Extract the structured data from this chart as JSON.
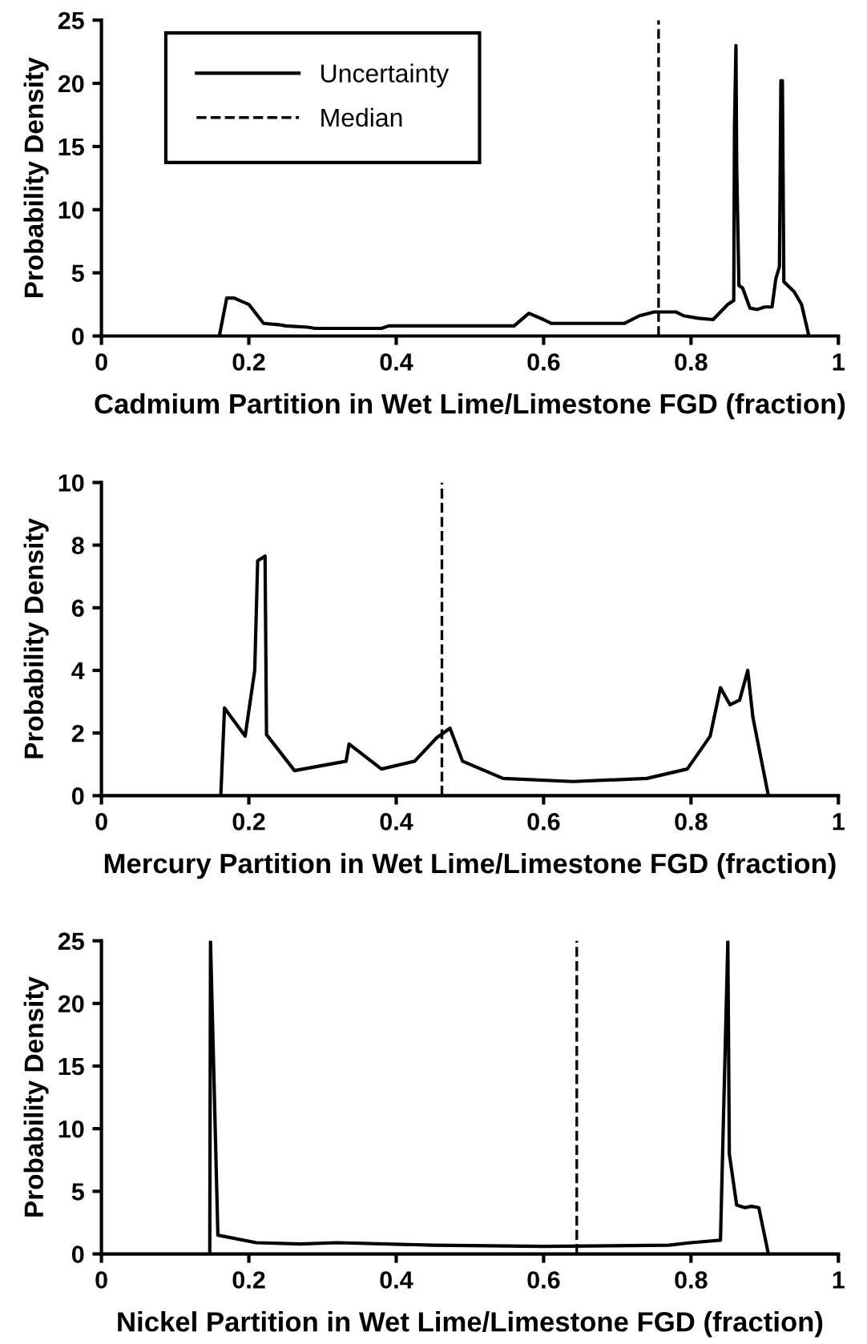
{
  "chart_data": [
    {
      "type": "line",
      "xlabel": "Cadmium Partition in Wet Lime/Limestone FGD (fraction)",
      "ylabel": "Probability Density",
      "xlim": [
        0,
        1
      ],
      "ylim": [
        0,
        25
      ],
      "xticks": [
        0,
        0.2,
        0.4,
        0.6,
        0.8,
        1
      ],
      "yticks": [
        0,
        5,
        10,
        15,
        20,
        25
      ],
      "grid": false,
      "legend": "top left",
      "line_style": "solid",
      "series": [
        {
          "name": "Uncertainty",
          "color": "#000000",
          "x": [
            0.16,
            0.17,
            0.18,
            0.2,
            0.22,
            0.24,
            0.25,
            0.28,
            0.29,
            0.38,
            0.39,
            0.56,
            0.58,
            0.6,
            0.61,
            0.71,
            0.73,
            0.75,
            0.78,
            0.79,
            0.81,
            0.83,
            0.85,
            0.858,
            0.859,
            0.861,
            0.862,
            0.865,
            0.87,
            0.88,
            0.89,
            0.9,
            0.91,
            0.915,
            0.92,
            0.922,
            0.924,
            0.926,
            0.94,
            0.95,
            0.96
          ],
          "values": [
            0,
            3.0,
            3.0,
            2.5,
            1.0,
            0.9,
            0.8,
            0.7,
            0.6,
            0.6,
            0.8,
            0.8,
            1.8,
            1.3,
            1.0,
            1.0,
            1.6,
            1.9,
            1.9,
            1.6,
            1.4,
            1.3,
            2.5,
            2.8,
            16.5,
            23,
            13.5,
            4,
            3.8,
            2.2,
            2.1,
            2.3,
            2.3,
            4.5,
            5.5,
            20.2,
            20.2,
            4.3,
            3.5,
            2.5,
            0
          ]
        },
        {
          "name": "Median",
          "color": "#000000",
          "line_style": "dashed",
          "x": [
            0.756,
            0.756
          ],
          "values": [
            0,
            25
          ]
        }
      ]
    },
    {
      "type": "line",
      "xlabel": "Mercury Partition in Wet Lime/Limestone FGD (fraction)",
      "ylabel": "Probability Density",
      "xlim": [
        0,
        1
      ],
      "ylim": [
        0,
        10
      ],
      "xticks": [
        0,
        0.2,
        0.4,
        0.6,
        0.8,
        1
      ],
      "yticks": [
        0,
        2,
        4,
        6,
        8,
        10
      ],
      "grid": false,
      "line_style": "solid",
      "series": [
        {
          "color": "#000000",
          "x": [
            0.162,
            0.167,
            0.195,
            0.208,
            0.212,
            0.222,
            0.224,
            0.262,
            0.332,
            0.336,
            0.38,
            0.425,
            0.455,
            0.473,
            0.49,
            0.545,
            0.64,
            0.74,
            0.795,
            0.826,
            0.84,
            0.853,
            0.866,
            0.877,
            0.884,
            0.905
          ],
          "values": [
            0,
            2.8,
            1.9,
            4.0,
            7.5,
            7.65,
            1.95,
            0.8,
            1.1,
            1.65,
            0.85,
            1.1,
            1.85,
            2.15,
            1.1,
            0.55,
            0.45,
            0.55,
            0.85,
            1.9,
            3.45,
            2.9,
            3.05,
            4.0,
            2.5,
            0
          ]
        }
      ],
      "ref_lines": [
        {
          "axis": "x",
          "value": 0.462,
          "color": "#000000",
          "line_style": "dashed"
        }
      ]
    },
    {
      "type": "line",
      "xlabel": "Nickel Partition in Wet Lime/Limestone FGD (fraction)",
      "ylabel": "Probability Density",
      "xlim": [
        0,
        1
      ],
      "ylim": [
        0,
        25
      ],
      "xticks": [
        0,
        0.2,
        0.4,
        0.6,
        0.8,
        1
      ],
      "yticks": [
        0,
        5,
        10,
        15,
        20,
        25
      ],
      "grid": false,
      "line_style": "solid",
      "series": [
        {
          "color": "#000000",
          "x": [
            0.147,
            0.148,
            0.158,
            0.21,
            0.27,
            0.32,
            0.45,
            0.6,
            0.77,
            0.8,
            0.84,
            0.85,
            0.852,
            0.862,
            0.873,
            0.882,
            0.892,
            0.905
          ],
          "values": [
            0,
            25,
            1.5,
            0.9,
            0.8,
            0.9,
            0.7,
            0.6,
            0.7,
            0.9,
            1.1,
            25,
            8,
            3.9,
            3.7,
            3.8,
            3.7,
            0
          ]
        }
      ],
      "ref_lines": [
        {
          "axis": "x",
          "value": 0.645,
          "color": "#000000",
          "line_style": "dashed"
        }
      ]
    }
  ]
}
